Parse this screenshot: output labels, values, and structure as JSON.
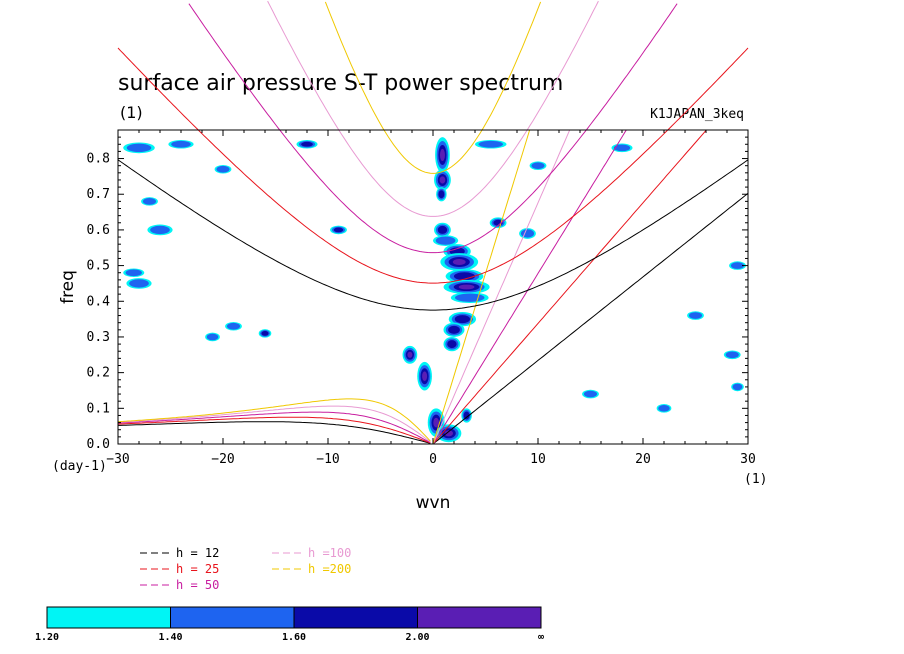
{
  "chart_data": {
    "type": "contour",
    "title": "surface air pressure S-T power spectrum",
    "subtitle": "(1)",
    "run_label": "K1JAPAN_3keq",
    "xlabel": "wvn",
    "ylabel": "freq",
    "x_unit": "(1)",
    "y_unit": "(day-1)",
    "xlim": [
      -30,
      30
    ],
    "ylim": [
      0,
      0.88
    ],
    "xticks": [
      -30,
      -20,
      -10,
      0,
      10,
      20,
      30
    ],
    "xtick_labels": [
      "−30",
      "−20",
      "−10",
      "0",
      "10",
      "20",
      "30"
    ],
    "yticks": [
      0,
      0.1,
      0.2,
      0.3,
      0.4,
      0.5,
      0.6,
      0.7,
      0.8
    ],
    "ytick_labels": [
      "0.0",
      "0.1",
      "0.2",
      "0.3",
      "0.4",
      "0.5",
      "0.6",
      "0.7",
      "0.8"
    ],
    "dispersion_curves": [
      {
        "name": "h = 12",
        "h": 12,
        "color": "#000000"
      },
      {
        "name": "h = 25",
        "h": 25,
        "color": "#e8141c"
      },
      {
        "name": "h = 50",
        "h": 50,
        "color": "#c81ea0"
      },
      {
        "name": "h =100",
        "h": 100,
        "color": "#e89ad2"
      },
      {
        "name": "h =200",
        "h": 200,
        "color": "#f0c800"
      }
    ],
    "colorbar": {
      "levels": [
        "1.20",
        "1.40",
        "1.60",
        "2.00",
        "∞"
      ],
      "colors": [
        "#00f5f5",
        "#1e64f0",
        "#0a0aa8",
        "#5a1eb4"
      ]
    },
    "shaded_blobs": [
      {
        "x": 0.9,
        "y": 0.81,
        "rx": 0.7,
        "ry": 0.05,
        "level": 3
      },
      {
        "x": 0.9,
        "y": 0.74,
        "rx": 0.8,
        "ry": 0.03,
        "level": 3
      },
      {
        "x": 0.8,
        "y": 0.7,
        "rx": 0.5,
        "ry": 0.02,
        "level": 2
      },
      {
        "x": 0.9,
        "y": 0.6,
        "rx": 0.8,
        "ry": 0.02,
        "level": 2
      },
      {
        "x": 1.2,
        "y": 0.57,
        "rx": 1.2,
        "ry": 0.015,
        "level": 1
      },
      {
        "x": 2.3,
        "y": 0.54,
        "rx": 1.3,
        "ry": 0.02,
        "level": 2
      },
      {
        "x": 2.5,
        "y": 0.51,
        "rx": 1.8,
        "ry": 0.025,
        "level": 3
      },
      {
        "x": 3.0,
        "y": 0.47,
        "rx": 1.8,
        "ry": 0.02,
        "level": 2
      },
      {
        "x": 3.2,
        "y": 0.44,
        "rx": 2.2,
        "ry": 0.02,
        "level": 3
      },
      {
        "x": 3.5,
        "y": 0.41,
        "rx": 1.8,
        "ry": 0.015,
        "level": 1
      },
      {
        "x": 2.8,
        "y": 0.35,
        "rx": 1.3,
        "ry": 0.02,
        "level": 2
      },
      {
        "x": 2.0,
        "y": 0.32,
        "rx": 1.0,
        "ry": 0.02,
        "level": 2
      },
      {
        "x": 1.8,
        "y": 0.28,
        "rx": 0.8,
        "ry": 0.02,
        "level": 2
      },
      {
        "x": -2.2,
        "y": 0.25,
        "rx": 0.7,
        "ry": 0.025,
        "level": 3
      },
      {
        "x": -0.8,
        "y": 0.19,
        "rx": 0.7,
        "ry": 0.04,
        "level": 3
      },
      {
        "x": 0.3,
        "y": 0.06,
        "rx": 0.8,
        "ry": 0.04,
        "level": 3
      },
      {
        "x": 1.5,
        "y": 0.03,
        "rx": 1.2,
        "ry": 0.025,
        "level": 3
      },
      {
        "x": 3.2,
        "y": 0.08,
        "rx": 0.5,
        "ry": 0.02,
        "level": 2
      },
      {
        "x": 5.5,
        "y": 0.84,
        "rx": 1.5,
        "ry": 0.012,
        "level": 1
      },
      {
        "x": 6.2,
        "y": 0.62,
        "rx": 0.8,
        "ry": 0.015,
        "level": 2
      },
      {
        "x": 9.0,
        "y": 0.59,
        "rx": 0.8,
        "ry": 0.015,
        "level": 1
      },
      {
        "x": -28.0,
        "y": 0.83,
        "rx": 1.5,
        "ry": 0.015,
        "level": 1
      },
      {
        "x": -24.0,
        "y": 0.84,
        "rx": 1.2,
        "ry": 0.012,
        "level": 1
      },
      {
        "x": -26.0,
        "y": 0.6,
        "rx": 1.2,
        "ry": 0.015,
        "level": 1
      },
      {
        "x": -28.5,
        "y": 0.48,
        "rx": 1.0,
        "ry": 0.012,
        "level": 1
      },
      {
        "x": -28.0,
        "y": 0.45,
        "rx": 1.2,
        "ry": 0.015,
        "level": 1
      },
      {
        "x": -19.0,
        "y": 0.33,
        "rx": 0.8,
        "ry": 0.012,
        "level": 1
      },
      {
        "x": -16.0,
        "y": 0.31,
        "rx": 0.6,
        "ry": 0.012,
        "level": 2
      },
      {
        "x": -12.0,
        "y": 0.84,
        "rx": 1.0,
        "ry": 0.012,
        "level": 2
      },
      {
        "x": -9.0,
        "y": 0.6,
        "rx": 0.8,
        "ry": 0.012,
        "level": 2
      },
      {
        "x": -20.0,
        "y": 0.77,
        "rx": 0.8,
        "ry": 0.012,
        "level": 1
      },
      {
        "x": -21.0,
        "y": 0.3,
        "rx": 0.7,
        "ry": 0.012,
        "level": 1
      },
      {
        "x": 18.0,
        "y": 0.83,
        "rx": 1.0,
        "ry": 0.012,
        "level": 1
      },
      {
        "x": 25.0,
        "y": 0.36,
        "rx": 0.8,
        "ry": 0.012,
        "level": 1
      },
      {
        "x": 29.0,
        "y": 0.5,
        "rx": 0.8,
        "ry": 0.012,
        "level": 1
      },
      {
        "x": 28.5,
        "y": 0.25,
        "rx": 0.8,
        "ry": 0.012,
        "level": 1
      },
      {
        "x": 29.0,
        "y": 0.16,
        "rx": 0.6,
        "ry": 0.012,
        "level": 1
      },
      {
        "x": 10.0,
        "y": 0.78,
        "rx": 0.8,
        "ry": 0.012,
        "level": 1
      },
      {
        "x": 15.0,
        "y": 0.14,
        "rx": 0.8,
        "ry": 0.012,
        "level": 1
      },
      {
        "x": 22.0,
        "y": 0.1,
        "rx": 0.7,
        "ry": 0.012,
        "level": 1
      },
      {
        "x": -27.0,
        "y": 0.68,
        "rx": 0.8,
        "ry": 0.012,
        "level": 1
      }
    ]
  }
}
